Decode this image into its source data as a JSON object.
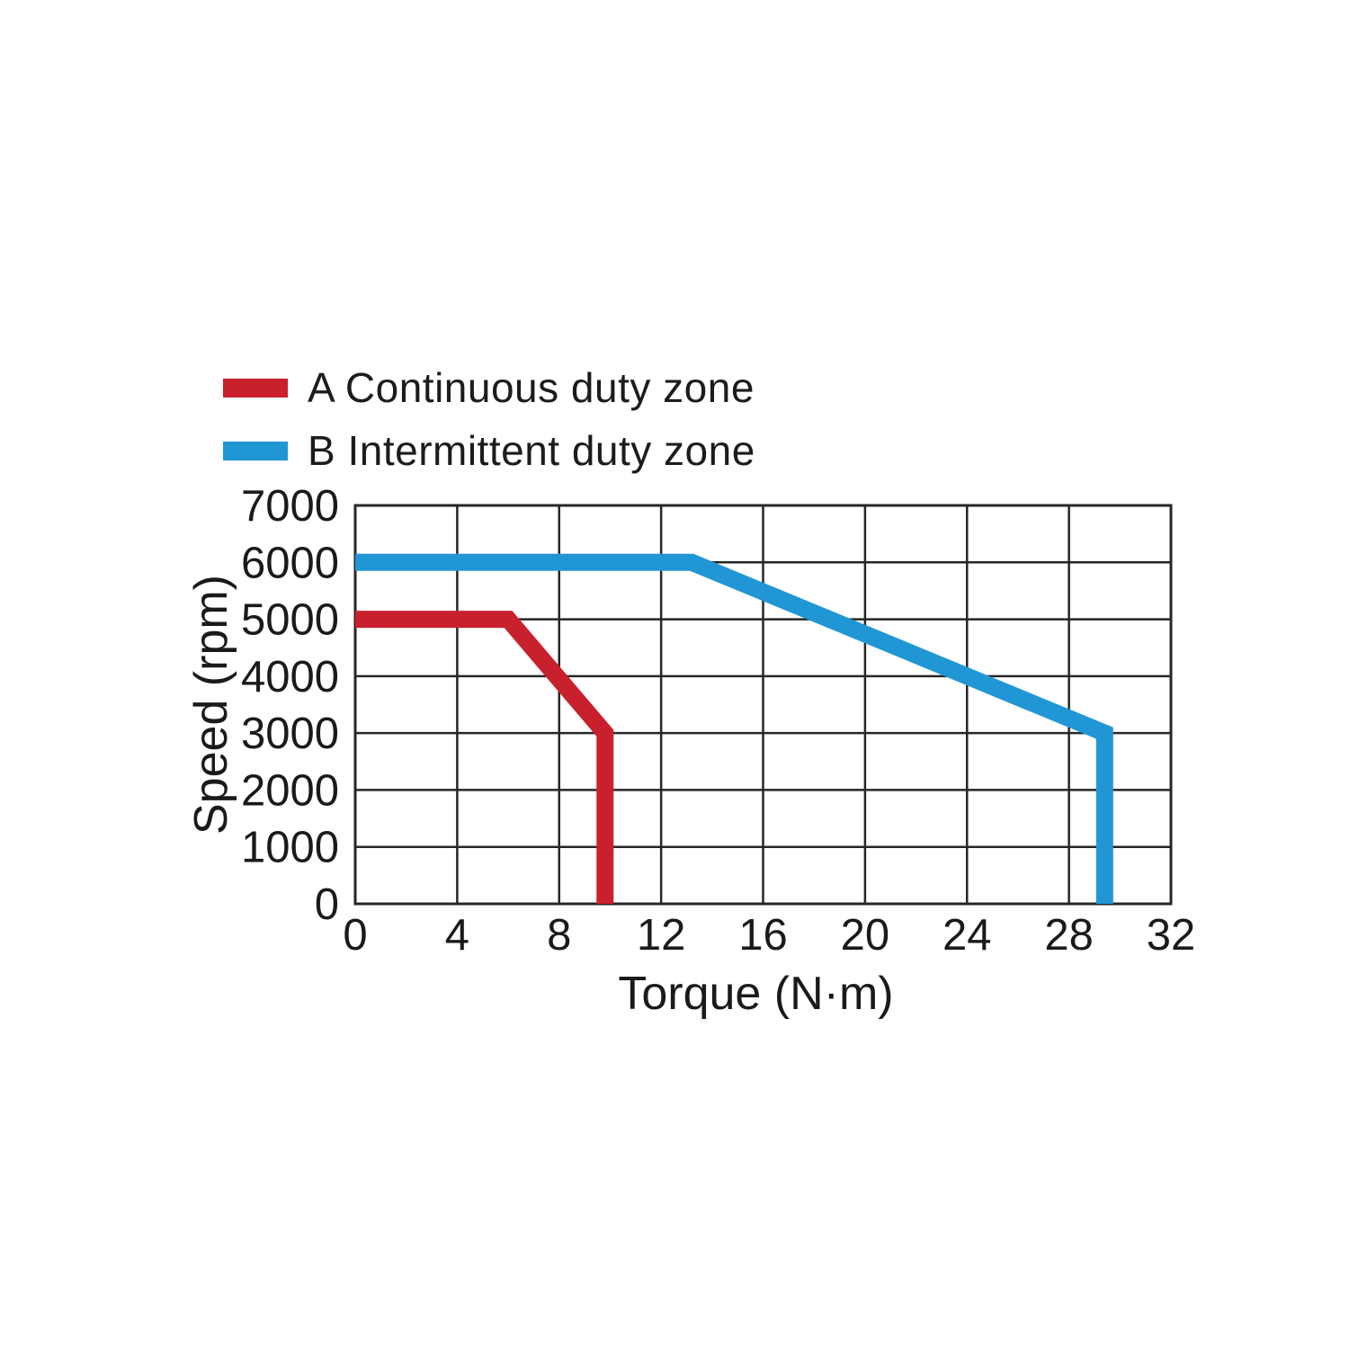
{
  "page": {
    "background": "#ffffff"
  },
  "legend": {
    "items": [
      {
        "id": "continuous",
        "label": "A Continuous duty zone",
        "color": "#c9202e"
      },
      {
        "id": "intermittent",
        "label": "B Intermittent duty zone",
        "color": "#2196d5"
      }
    ]
  },
  "chart_data": {
    "type": "line",
    "title": "",
    "xlabel": "Torque (N·m)",
    "ylabel": "Speed (rpm)",
    "xlim": [
      0,
      32
    ],
    "ylim": [
      0,
      7000
    ],
    "x_ticks": [
      0,
      4,
      8,
      12,
      16,
      20,
      24,
      28,
      32
    ],
    "y_ticks": [
      0,
      1000,
      2000,
      3000,
      4000,
      5000,
      6000,
      7000
    ],
    "grid": true,
    "grid_color": "#262626",
    "legend_position": "top-left",
    "series": [
      {
        "name": "A Continuous duty zone",
        "color": "#c9202e",
        "points": [
          [
            0,
            5000
          ],
          [
            6,
            5000
          ],
          [
            9.8,
            3000
          ],
          [
            9.8,
            0
          ]
        ]
      },
      {
        "name": "B Intermittent duty zone",
        "color": "#2196d5",
        "points": [
          [
            0,
            6000
          ],
          [
            13.2,
            6000
          ],
          [
            29.4,
            3000
          ],
          [
            29.4,
            0
          ]
        ]
      }
    ]
  }
}
